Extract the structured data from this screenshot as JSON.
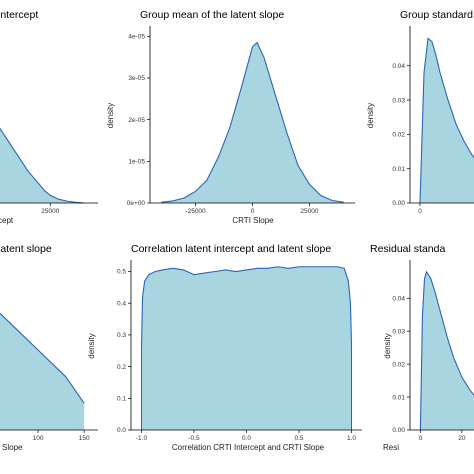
{
  "chart_data": [
    {
      "panel": "top-left",
      "type": "area",
      "title": "intercept",
      "xlabel": "cept",
      "ylabel": "",
      "x_ticks": [
        "25000"
      ],
      "y_ticks": [],
      "xlim": [
        -15000,
        42000
      ],
      "grid": false,
      "x": [
        -15000,
        -11000,
        -7000,
        -3000,
        1000,
        5000,
        9000,
        13000,
        17000,
        21000,
        23000,
        25000,
        28000,
        31000,
        34000,
        37000
      ],
      "y": [
        0.88,
        0.79,
        0.71,
        0.62,
        0.53,
        0.44,
        0.35,
        0.26,
        0.17,
        0.1,
        0.065,
        0.04,
        0.02,
        0.01,
        0.004,
        0.0
      ]
    },
    {
      "panel": "top-middle",
      "type": "area",
      "title": "Group mean of the latent slope",
      "xlabel": "CRTI Slope",
      "ylabel": "density",
      "x_ticks": [
        "-25000",
        "0",
        "25000"
      ],
      "y_ticks": [
        "0e+00",
        "1e-05",
        "2e-05",
        "3e-05",
        "4e-05"
      ],
      "xlim": [
        -45000,
        45000
      ],
      "ylim": [
        0,
        4.2e-05
      ],
      "grid": false,
      "x": [
        -40000,
        -35000,
        -30000,
        -25000,
        -20000,
        -15000,
        -10000,
        -5000,
        -2000,
        0,
        2000,
        5000,
        10000,
        15000,
        20000,
        25000,
        30000,
        35000,
        40000
      ],
      "y": [
        2e-07,
        5e-07,
        1.2e-06,
        2.8e-06,
        5.5e-06,
        1.1e-05,
        1.8e-05,
        2.75e-05,
        3.35e-05,
        3.75e-05,
        3.85e-05,
        3.5e-05,
        2.6e-05,
        1.7e-05,
        9e-06,
        4.5e-06,
        1.8e-06,
        6e-07,
        2e-07
      ]
    },
    {
      "panel": "top-right",
      "type": "area",
      "title": "Group standard",
      "xlabel": "",
      "ylabel": "density",
      "x_ticks": [
        "0"
      ],
      "y_ticks": [
        "0.00",
        "0.01",
        "0.02",
        "0.03",
        "0.04"
      ],
      "xlim": [
        -5,
        70
      ],
      "ylim": [
        0,
        0.051
      ],
      "grid": false,
      "x": [
        0,
        2,
        4,
        6,
        8,
        10,
        14,
        18,
        22,
        26,
        30,
        34,
        38,
        42,
        46,
        50,
        55,
        60,
        65
      ],
      "y": [
        0.0,
        0.038,
        0.048,
        0.047,
        0.043,
        0.038,
        0.03,
        0.023,
        0.018,
        0.014,
        0.011,
        0.0085,
        0.0068,
        0.0057,
        0.0052,
        0.0048,
        0.0038,
        0.0025,
        0.0015
      ]
    },
    {
      "panel": "bottom-left",
      "type": "area",
      "title": "latent slope",
      "xlabel": "Slope",
      "ylabel": "",
      "x_ticks": [
        "100",
        "150"
      ],
      "y_ticks": [],
      "xlim": [
        10,
        165
      ],
      "grid": false,
      "x": [
        10,
        40,
        70,
        100,
        130,
        150
      ],
      "y": [
        0.003,
        0.0025,
        0.002,
        0.0015,
        0.001,
        0.0005
      ]
    },
    {
      "panel": "bottom-middle",
      "type": "area",
      "title": "Correlation latent intercept and latent slope",
      "xlabel": "Correlation CRTI Intercept and CRTI Slope",
      "ylabel": "density",
      "x_ticks": [
        "-1.0",
        "-0.5",
        "0.0",
        "0.5",
        "1.0"
      ],
      "y_ticks": [
        "0.0",
        "0.1",
        "0.2",
        "0.3",
        "0.4",
        "0.5"
      ],
      "xlim": [
        -1.1,
        1.1
      ],
      "ylim": [
        0,
        0.53
      ],
      "grid": false,
      "x": [
        -1.0,
        -0.99,
        -0.97,
        -0.93,
        -0.87,
        -0.8,
        -0.7,
        -0.6,
        -0.5,
        -0.4,
        -0.3,
        -0.2,
        -0.1,
        0.0,
        0.1,
        0.2,
        0.3,
        0.4,
        0.5,
        0.6,
        0.7,
        0.8,
        0.87,
        0.93,
        0.97,
        0.99,
        1.0
      ],
      "y": [
        0.26,
        0.42,
        0.47,
        0.49,
        0.5,
        0.505,
        0.51,
        0.505,
        0.49,
        0.495,
        0.5,
        0.505,
        0.5,
        0.505,
        0.51,
        0.51,
        0.515,
        0.51,
        0.515,
        0.515,
        0.515,
        0.515,
        0.515,
        0.51,
        0.47,
        0.4,
        0.27
      ]
    },
    {
      "panel": "bottom-right",
      "type": "area",
      "title": "Residual standa",
      "xlabel": "Resi",
      "ylabel": "density",
      "x_ticks": [
        "0",
        "20"
      ],
      "y_ticks": [
        "0.00",
        "0.01",
        "0.02",
        "0.03",
        "0.04"
      ],
      "xlim": [
        -5,
        60
      ],
      "ylim": [
        0,
        0.051
      ],
      "grid": false,
      "x": [
        0,
        1,
        2,
        3,
        5,
        7,
        10,
        13,
        16,
        20,
        24,
        28,
        32,
        36,
        40,
        45,
        50,
        55
      ],
      "y": [
        0.0,
        0.035,
        0.046,
        0.048,
        0.046,
        0.042,
        0.035,
        0.028,
        0.022,
        0.016,
        0.012,
        0.009,
        0.0068,
        0.0052,
        0.0038,
        0.0026,
        0.0016,
        0.0009
      ]
    }
  ],
  "colors": {
    "fill": "#a8d5e0",
    "stroke": "#2a65b5",
    "axis": "#000000",
    "text": "#333333"
  }
}
